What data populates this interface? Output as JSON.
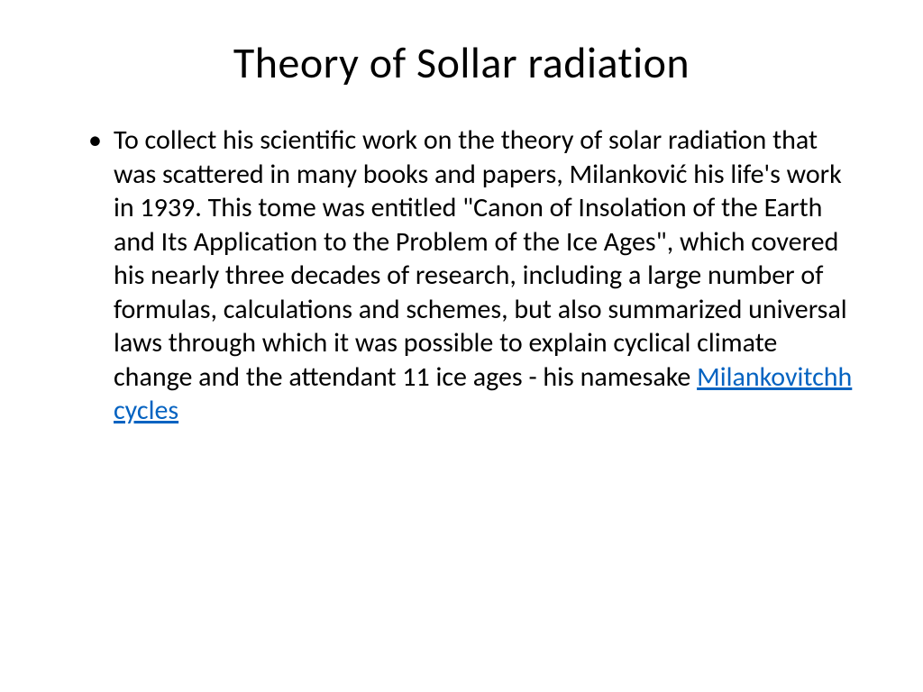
{
  "slide": {
    "title": "Theory of Sollar radiation",
    "body_text": "To collect his scientific work on the theory of solar radiation that was scattered in many books and papers, Milanković  his life's work in 1939. This tome was entitled \"Canon of Insolation of the Earth and Its Application to the Problem of the Ice Ages\", which covered his nearly three decades of research, including a large number of formulas, calculations and schemes, but also summarized universal laws through which it was possible to explain cyclical climate change and the attendant 11 ice ages - his namesake ",
    "link_text": "Milankovitchh cycles"
  },
  "styles": {
    "background_color": "#ffffff",
    "title_color": "#000000",
    "title_fontsize": 48,
    "body_color": "#000000",
    "body_fontsize": 30,
    "link_color": "#0563c1",
    "font_family": "Calibri"
  }
}
